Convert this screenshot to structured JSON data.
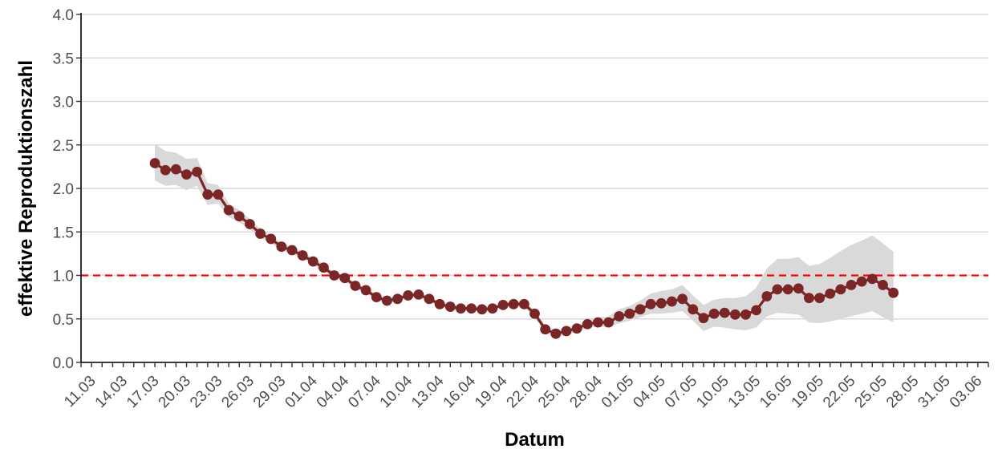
{
  "chart_data": {
    "type": "line",
    "xlabel": "Datum",
    "ylabel": "effektive Reproduktionszahl",
    "ylim": [
      0,
      4
    ],
    "yticks": [
      0,
      0.5,
      1,
      1.5,
      2,
      2.5,
      3,
      3.5,
      4
    ],
    "ytick_labels": [
      "0.0",
      "0.5",
      "1.0",
      "1.5",
      "2.0",
      "2.5",
      "3.0",
      "3.5",
      "4.0"
    ],
    "xlim": [
      "2020-03-10",
      "2020-06-04"
    ],
    "xticks": [
      "2020-03-11",
      "2020-03-14",
      "2020-03-17",
      "2020-03-20",
      "2020-03-23",
      "2020-03-26",
      "2020-03-29",
      "2020-04-01",
      "2020-04-04",
      "2020-04-07",
      "2020-04-10",
      "2020-04-13",
      "2020-04-16",
      "2020-04-19",
      "2020-04-22",
      "2020-04-25",
      "2020-04-28",
      "2020-05-01",
      "2020-05-04",
      "2020-05-07",
      "2020-05-10",
      "2020-05-13",
      "2020-05-16",
      "2020-05-19",
      "2020-05-22",
      "2020-05-25",
      "2020-05-28",
      "2020-05-31",
      "2020-06-03"
    ],
    "xtick_labels": [
      "11.03",
      "14.03",
      "17.03",
      "20.03",
      "23.03",
      "26.03",
      "29.03",
      "01.04",
      "04.04",
      "07.04",
      "10.04",
      "13.04",
      "16.04",
      "19.04",
      "22.04",
      "25.04",
      "28.04",
      "01.05",
      "04.05",
      "07.05",
      "10.05",
      "13.05",
      "16.05",
      "19.05",
      "22.05",
      "25.05",
      "28.05",
      "31.05",
      "03.06"
    ],
    "grid": "horizontal",
    "reference_line": {
      "y": 1.0,
      "color": "#ff0000",
      "style": "dashed"
    },
    "series": [
      {
        "color": "#7a2626",
        "points": [
          [
            "2020-03-17",
            2.29
          ],
          [
            "2020-03-18",
            2.21
          ],
          [
            "2020-03-19",
            2.22
          ],
          [
            "2020-03-20",
            2.16
          ],
          [
            "2020-03-21",
            2.19
          ],
          [
            "2020-03-22",
            1.93
          ],
          [
            "2020-03-23",
            1.93
          ],
          [
            "2020-03-24",
            1.75
          ],
          [
            "2020-03-25",
            1.68
          ],
          [
            "2020-03-26",
            1.59
          ],
          [
            "2020-03-27",
            1.48
          ],
          [
            "2020-03-28",
            1.42
          ],
          [
            "2020-03-29",
            1.33
          ],
          [
            "2020-03-30",
            1.29
          ],
          [
            "2020-03-31",
            1.23
          ],
          [
            "2020-04-01",
            1.16
          ],
          [
            "2020-04-02",
            1.09
          ],
          [
            "2020-04-03",
            1.0
          ],
          [
            "2020-04-04",
            0.97
          ],
          [
            "2020-04-05",
            0.88
          ],
          [
            "2020-04-06",
            0.83
          ],
          [
            "2020-04-07",
            0.75
          ],
          [
            "2020-04-08",
            0.71
          ],
          [
            "2020-04-09",
            0.73
          ],
          [
            "2020-04-10",
            0.77
          ],
          [
            "2020-04-11",
            0.78
          ],
          [
            "2020-04-12",
            0.73
          ],
          [
            "2020-04-13",
            0.67
          ],
          [
            "2020-04-14",
            0.64
          ],
          [
            "2020-04-15",
            0.62
          ],
          [
            "2020-04-16",
            0.62
          ],
          [
            "2020-04-17",
            0.61
          ],
          [
            "2020-04-18",
            0.62
          ],
          [
            "2020-04-19",
            0.66
          ],
          [
            "2020-04-20",
            0.67
          ],
          [
            "2020-04-21",
            0.67
          ],
          [
            "2020-04-22",
            0.56
          ],
          [
            "2020-04-23",
            0.38
          ],
          [
            "2020-04-24",
            0.33
          ],
          [
            "2020-04-25",
            0.36
          ],
          [
            "2020-04-26",
            0.39
          ],
          [
            "2020-04-27",
            0.44
          ],
          [
            "2020-04-28",
            0.46
          ],
          [
            "2020-04-29",
            0.46
          ],
          [
            "2020-04-30",
            0.53
          ],
          [
            "2020-05-01",
            0.56
          ],
          [
            "2020-05-02",
            0.61
          ],
          [
            "2020-05-03",
            0.67
          ],
          [
            "2020-05-04",
            0.68
          ],
          [
            "2020-05-05",
            0.7
          ],
          [
            "2020-05-06",
            0.73
          ],
          [
            "2020-05-07",
            0.61
          ],
          [
            "2020-05-08",
            0.51
          ],
          [
            "2020-05-09",
            0.56
          ],
          [
            "2020-05-10",
            0.57
          ],
          [
            "2020-05-11",
            0.55
          ],
          [
            "2020-05-12",
            0.55
          ],
          [
            "2020-05-13",
            0.6
          ],
          [
            "2020-05-14",
            0.76
          ],
          [
            "2020-05-15",
            0.84
          ],
          [
            "2020-05-16",
            0.84
          ],
          [
            "2020-05-17",
            0.85
          ],
          [
            "2020-05-18",
            0.74
          ],
          [
            "2020-05-19",
            0.74
          ],
          [
            "2020-05-20",
            0.79
          ],
          [
            "2020-05-21",
            0.84
          ],
          [
            "2020-05-22",
            0.89
          ],
          [
            "2020-05-23",
            0.93
          ],
          [
            "2020-05-24",
            0.96
          ],
          [
            "2020-05-25",
            0.89
          ],
          [
            "2020-05-26",
            0.8
          ]
        ]
      }
    ],
    "confidence_band": {
      "color": "#d9d9d9",
      "points": [
        [
          "2020-03-17",
          2.09,
          2.51
        ],
        [
          "2020-03-18",
          2.03,
          2.43
        ],
        [
          "2020-03-19",
          2.04,
          2.41
        ],
        [
          "2020-03-20",
          1.98,
          2.34
        ],
        [
          "2020-03-21",
          2.03,
          2.35
        ],
        [
          "2020-03-22",
          1.81,
          2.06
        ],
        [
          "2020-03-23",
          1.83,
          2.04
        ],
        [
          "2020-03-24",
          1.67,
          1.83
        ],
        [
          "2020-03-25",
          1.61,
          1.75
        ],
        [
          "2020-03-26",
          1.53,
          1.65
        ],
        [
          "2020-03-27",
          1.43,
          1.53
        ],
        [
          "2020-03-28",
          1.37,
          1.47
        ],
        [
          "2020-03-29",
          1.29,
          1.37
        ],
        [
          "2020-03-30",
          1.25,
          1.33
        ],
        [
          "2020-03-31",
          1.19,
          1.27
        ],
        [
          "2020-04-01",
          1.12,
          1.2
        ],
        [
          "2020-04-02",
          1.05,
          1.13
        ],
        [
          "2020-04-03",
          0.97,
          1.03
        ],
        [
          "2020-04-04",
          0.93,
          1.01
        ],
        [
          "2020-04-05",
          0.85,
          0.91
        ],
        [
          "2020-04-06",
          0.8,
          0.86
        ],
        [
          "2020-04-07",
          0.72,
          0.78
        ],
        [
          "2020-04-08",
          0.68,
          0.74
        ],
        [
          "2020-04-09",
          0.7,
          0.76
        ],
        [
          "2020-04-10",
          0.74,
          0.8
        ],
        [
          "2020-04-11",
          0.75,
          0.81
        ],
        [
          "2020-04-12",
          0.7,
          0.76
        ],
        [
          "2020-04-13",
          0.64,
          0.7
        ],
        [
          "2020-04-14",
          0.61,
          0.67
        ],
        [
          "2020-04-15",
          0.59,
          0.65
        ],
        [
          "2020-04-16",
          0.59,
          0.65
        ],
        [
          "2020-04-17",
          0.58,
          0.64
        ],
        [
          "2020-04-18",
          0.59,
          0.65
        ],
        [
          "2020-04-19",
          0.63,
          0.69
        ],
        [
          "2020-04-20",
          0.64,
          0.7
        ],
        [
          "2020-04-21",
          0.64,
          0.7
        ],
        [
          "2020-04-22",
          0.52,
          0.6
        ],
        [
          "2020-04-23",
          0.34,
          0.42
        ],
        [
          "2020-04-24",
          0.29,
          0.37
        ],
        [
          "2020-04-25",
          0.32,
          0.4
        ],
        [
          "2020-04-26",
          0.35,
          0.43
        ],
        [
          "2020-04-27",
          0.4,
          0.48
        ],
        [
          "2020-04-28",
          0.41,
          0.51
        ],
        [
          "2020-04-29",
          0.4,
          0.53
        ],
        [
          "2020-04-30",
          0.45,
          0.61
        ],
        [
          "2020-05-01",
          0.48,
          0.65
        ],
        [
          "2020-05-02",
          0.52,
          0.71
        ],
        [
          "2020-05-03",
          0.56,
          0.79
        ],
        [
          "2020-05-04",
          0.56,
          0.82
        ],
        [
          "2020-05-05",
          0.57,
          0.84
        ],
        [
          "2020-05-06",
          0.59,
          0.89
        ],
        [
          "2020-05-07",
          0.48,
          0.77
        ],
        [
          "2020-05-08",
          0.36,
          0.66
        ],
        [
          "2020-05-09",
          0.41,
          0.72
        ],
        [
          "2020-05-10",
          0.4,
          0.74
        ],
        [
          "2020-05-11",
          0.38,
          0.74
        ],
        [
          "2020-05-12",
          0.37,
          0.76
        ],
        [
          "2020-05-13",
          0.4,
          0.86
        ],
        [
          "2020-05-14",
          0.53,
          1.08
        ],
        [
          "2020-05-15",
          0.57,
          1.19
        ],
        [
          "2020-05-16",
          0.56,
          1.19
        ],
        [
          "2020-05-17",
          0.55,
          1.21
        ],
        [
          "2020-05-18",
          0.46,
          1.11
        ],
        [
          "2020-05-19",
          0.45,
          1.13
        ],
        [
          "2020-05-20",
          0.47,
          1.2
        ],
        [
          "2020-05-21",
          0.5,
          1.28
        ],
        [
          "2020-05-22",
          0.53,
          1.35
        ],
        [
          "2020-05-23",
          0.56,
          1.4
        ],
        [
          "2020-05-24",
          0.59,
          1.46
        ],
        [
          "2020-05-25",
          0.52,
          1.37
        ],
        [
          "2020-05-26",
          0.46,
          1.27
        ]
      ]
    }
  }
}
